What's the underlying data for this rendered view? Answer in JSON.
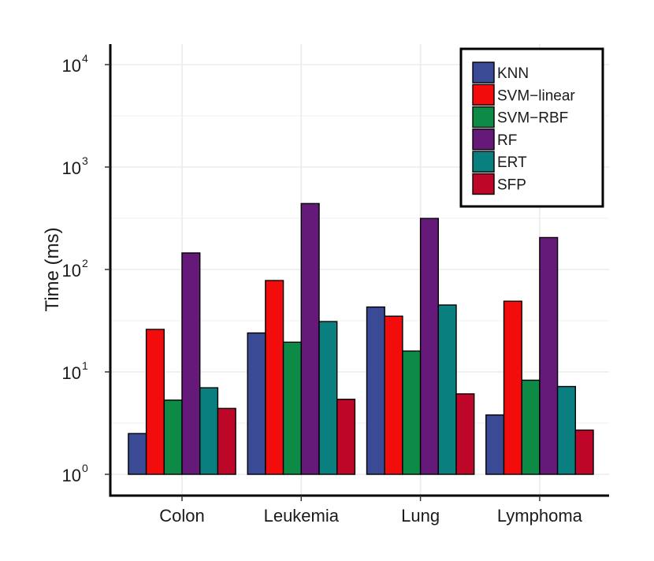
{
  "chart_data": {
    "type": "bar",
    "title": "",
    "xlabel": "",
    "ylabel": "Time (ms)",
    "yscale": "log10",
    "ylim": [
      1,
      10000
    ],
    "ytick_labels": [
      {
        "base": "10",
        "exp": "0"
      },
      {
        "base": "10",
        "exp": "1"
      },
      {
        "base": "10",
        "exp": "2"
      },
      {
        "base": "10",
        "exp": "3"
      },
      {
        "base": "10",
        "exp": "4"
      }
    ],
    "grid": true,
    "legend_position": "top-right",
    "categories": [
      "Colon",
      "Leukemia",
      "Lung",
      "Lymphoma"
    ],
    "series": [
      {
        "name": "KNN",
        "color": "#3b4a94",
        "values": [
          2.5,
          24,
          43,
          3.8
        ]
      },
      {
        "name": "SVM−linear",
        "color": "#f20c0c",
        "values": [
          26,
          78,
          35,
          49
        ]
      },
      {
        "name": "SVM−RBF",
        "color": "#0d8a45",
        "values": [
          5.3,
          19.5,
          16,
          8.3
        ]
      },
      {
        "name": "RF",
        "color": "#651a7a",
        "values": [
          145,
          440,
          315,
          205
        ]
      },
      {
        "name": "ERT",
        "color": "#0a7f80",
        "values": [
          7,
          31,
          45,
          7.2
        ]
      },
      {
        "name": "SFP",
        "color": "#be0628",
        "values": [
          4.4,
          5.4,
          6.1,
          2.7
        ]
      }
    ]
  }
}
